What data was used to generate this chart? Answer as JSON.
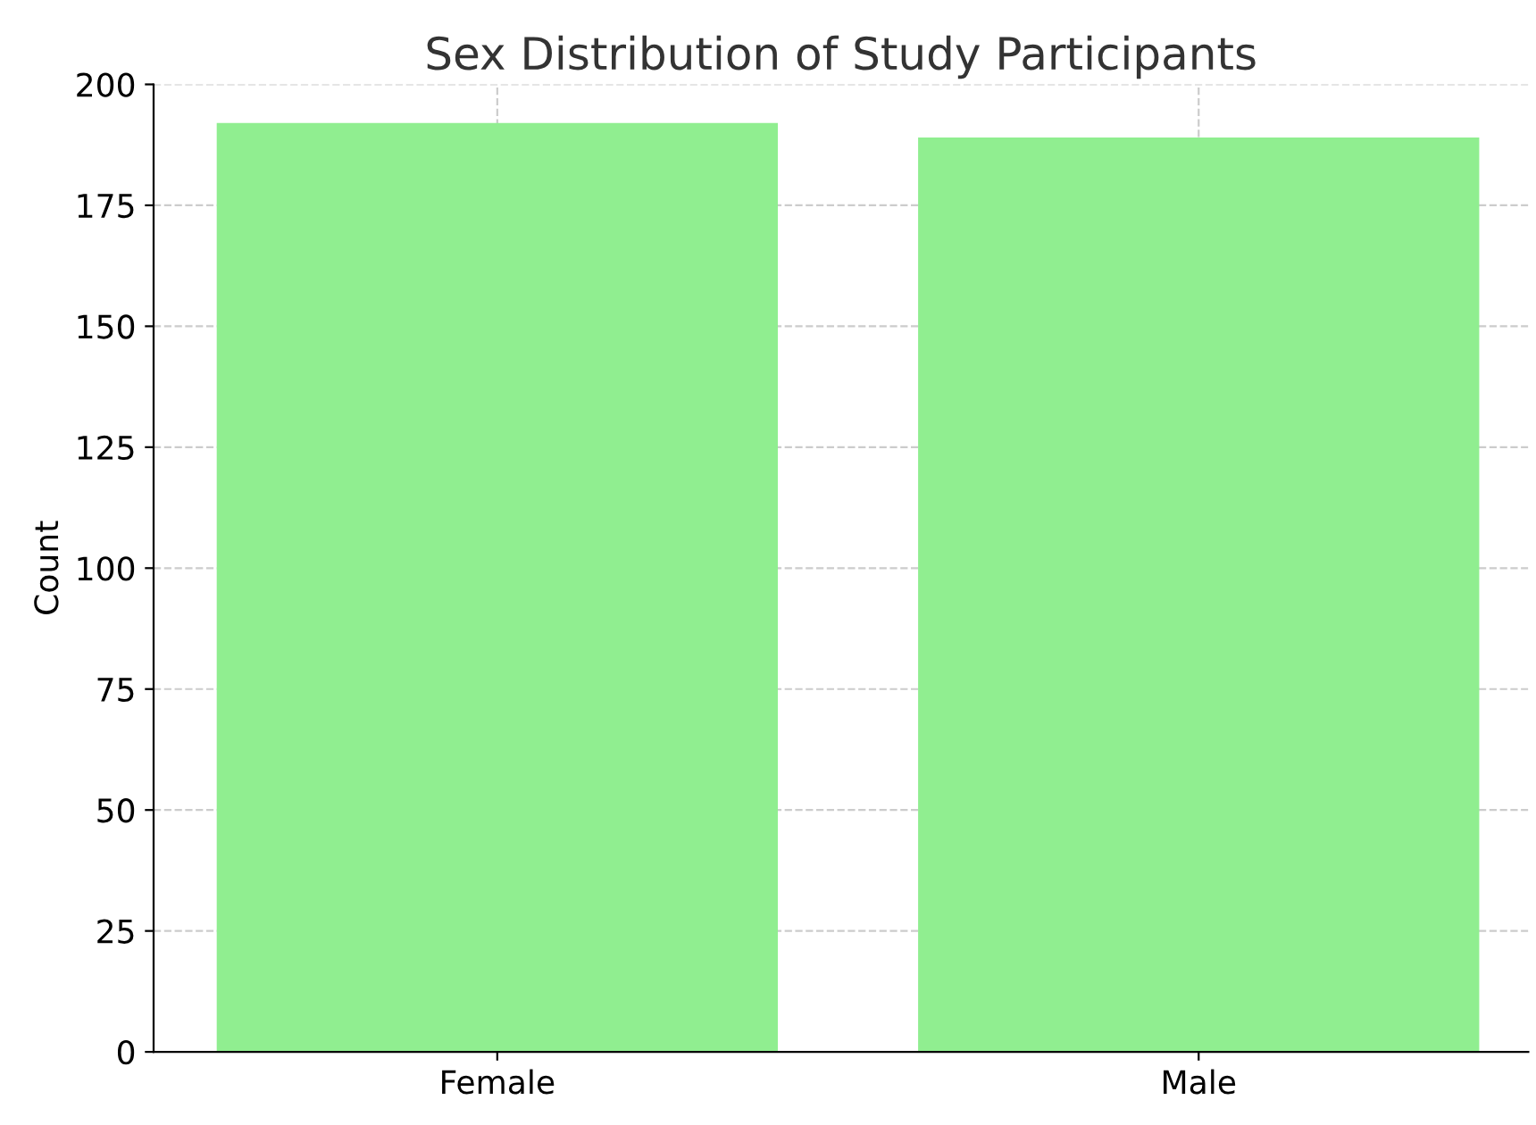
{
  "chart_data": {
    "type": "bar",
    "title": "Sex Distribution of Study Participants",
    "ylabel": "Count",
    "categories": [
      "Female",
      "Male"
    ],
    "values": [
      192,
      189
    ],
    "color": "#90ee90",
    "ylim": [
      0,
      200
    ],
    "yticks": [
      0,
      25,
      50,
      75,
      100,
      125,
      150,
      175,
      200
    ],
    "grid": true,
    "line_style": "dashed"
  }
}
